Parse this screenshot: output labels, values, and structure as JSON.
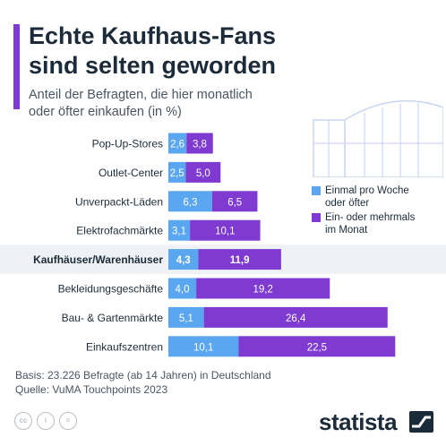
{
  "header": {
    "title_line1": "Echte Kaufhaus-Fans",
    "title_line2": "sind selten geworden",
    "subtitle_line1": "Anteil der Befragten, die hier monatlich",
    "subtitle_line2": "oder öfter einkaufen (in %)"
  },
  "colors": {
    "accent": "#7e3ad1",
    "weekly": "#5ba6f0",
    "monthly": "#7e3ad1",
    "highlight_row": "#eef1f5",
    "text": "#1c2b39"
  },
  "legend": {
    "weekly_line1": "Einmal pro Woche",
    "weekly_line2": "oder öfter",
    "monthly_line1": "Ein- oder mehrmals",
    "monthly_line2": "im Monat"
  },
  "chart_data": {
    "type": "bar",
    "orientation": "horizontal",
    "stacked": true,
    "categories": [
      "Pop-Up-Stores",
      "Outlet-Center",
      "Unverpackt-Läden",
      "Elektrofachmärkte",
      "Kaufhäuser/Warenhäuser",
      "Bekleidungsgeschäfte",
      "Bau- & Gartenmärkte",
      "Einkaufszentren"
    ],
    "highlighted_category": "Kaufhäuser/Warenhäuser",
    "series": [
      {
        "name": "Einmal pro Woche oder öfter",
        "values": [
          2.6,
          2.5,
          6.3,
          3.1,
          4.3,
          4.0,
          5.1,
          10.1
        ]
      },
      {
        "name": "Ein- oder mehrmals im Monat",
        "values": [
          3.8,
          5.0,
          6.5,
          10.1,
          11.9,
          19.2,
          26.4,
          22.5
        ]
      }
    ],
    "value_labels": [
      [
        "2,6",
        "3,8"
      ],
      [
        "2,5",
        "5,0"
      ],
      [
        "6,3",
        "6,5"
      ],
      [
        "3,1",
        "10,1"
      ],
      [
        "4,3",
        "11,9"
      ],
      [
        "4,0",
        "19,2"
      ],
      [
        "5,1",
        "26,4"
      ],
      [
        "10,1",
        "22,5"
      ]
    ]
  },
  "footer": {
    "basis": "Basis: 23.226 Befragte (ab 14 Jahren) in Deutschland",
    "source": "Quelle: VuMA Touchpoints 2023",
    "brand": "statista",
    "cc_icons": [
      "cc-icon",
      "by-person-icon",
      "equals-icon"
    ],
    "cc_labels": [
      "cc",
      "i",
      "="
    ]
  }
}
